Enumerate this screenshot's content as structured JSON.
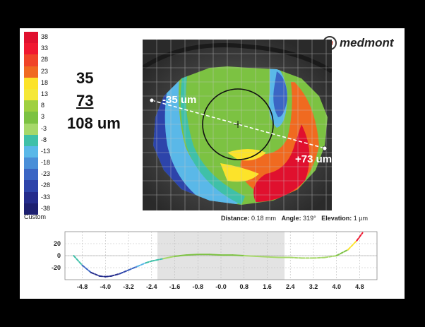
{
  "scale": {
    "entries": [
      {
        "label": "38",
        "color": "#e0102e"
      },
      {
        "label": "33",
        "color": "#f01830"
      },
      {
        "label": "28",
        "color": "#f04428"
      },
      {
        "label": "23",
        "color": "#f06a20"
      },
      {
        "label": "18",
        "color": "#fce32a"
      },
      {
        "label": "13",
        "color": "#f5e838"
      },
      {
        "label": "8",
        "color": "#9fd040"
      },
      {
        "label": "3",
        "color": "#7cc242"
      },
      {
        "label": "-3",
        "color": "#a6d86a"
      },
      {
        "label": "-8",
        "color": "#3fc0a8"
      },
      {
        "label": "-13",
        "color": "#5ab8e8"
      },
      {
        "label": "-18",
        "color": "#4a8fd8"
      },
      {
        "label": "-23",
        "color": "#3b66c4"
      },
      {
        "label": "-28",
        "color": "#2d44aa"
      },
      {
        "label": "-33",
        "color": "#242c8c"
      },
      {
        "label": "-38",
        "color": "#1d2070"
      }
    ],
    "mode_label": "Custom"
  },
  "summary": {
    "value_top": "35",
    "value_middle": "73",
    "value_total": "108 um"
  },
  "logo": {
    "mark": "m",
    "name": "medmont"
  },
  "map": {
    "label_left": "-35 um",
    "label_right": "+73 um"
  },
  "readout": {
    "distance_label": "Distance:",
    "distance_value": "0.18 mm",
    "angle_label": "Angle:",
    "angle_value": "319°",
    "elevation_label": "Elevation:",
    "elevation_value": "1 µm"
  },
  "chart_data": {
    "type": "line",
    "x_ticks": [
      "-4.8",
      "-4.0",
      "-3.2",
      "-2.4",
      "-1.6",
      "-0.8",
      "-0.0",
      "0.8",
      "1.6",
      "2.4",
      "3.2",
      "4.0",
      "4.8"
    ],
    "y_ticks": [
      "20",
      "0",
      "-20"
    ],
    "xlim": [
      -5.4,
      5.4
    ],
    "ylim": [
      -40,
      40
    ],
    "shaded_region": [
      -2.2,
      2.2
    ],
    "x": [
      -5.1,
      -4.8,
      -4.5,
      -4.2,
      -4.0,
      -3.8,
      -3.5,
      -3.2,
      -2.9,
      -2.6,
      -2.4,
      -2.0,
      -1.6,
      -1.2,
      -0.8,
      -0.4,
      0.0,
      0.4,
      0.8,
      1.2,
      1.6,
      2.0,
      2.4,
      2.8,
      3.2,
      3.6,
      4.0,
      4.4,
      4.7,
      4.9
    ],
    "y": [
      0,
      -16,
      -28,
      -34,
      -35,
      -34,
      -30,
      -24,
      -18,
      -12,
      -9,
      -5,
      -1,
      1,
      2,
      2,
      1,
      1,
      0,
      -1,
      -2,
      -3,
      -3,
      -4,
      -4,
      -3,
      0,
      10,
      25,
      38
    ]
  }
}
